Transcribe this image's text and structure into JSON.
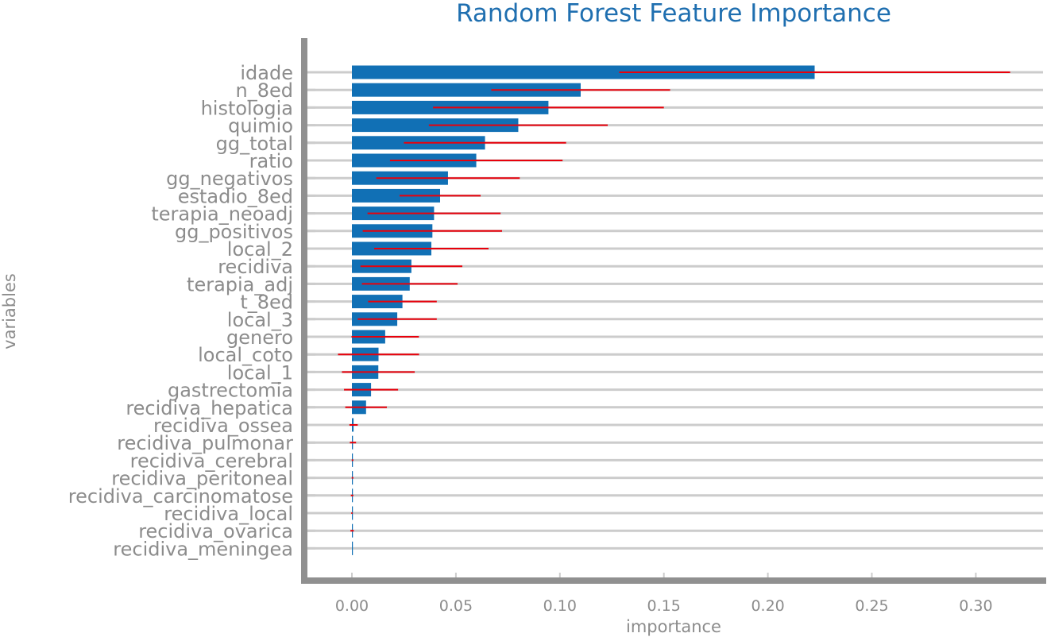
{
  "chart_data": {
    "type": "bar",
    "orientation": "horizontal",
    "title": "Random Forest Feature Importance",
    "xlabel": "importance",
    "ylabel": "variables",
    "xlim": [
      -0.024,
      0.333
    ],
    "xticks": [
      0.0,
      0.05,
      0.1,
      0.15,
      0.2,
      0.25,
      0.3
    ],
    "xtick_labels": [
      "0.00",
      "0.05",
      "0.10",
      "0.15",
      "0.20",
      "0.25",
      "0.30"
    ],
    "grid": "horizontal",
    "colors": {
      "bar": "#1170b5",
      "error": "#e8000b",
      "grid": "#cccccc",
      "axis": "#909090",
      "title": "#1f6fb0",
      "text": "#8c8c8c"
    },
    "categories": [
      "idade",
      "n_8ed",
      "histologia",
      "quimio",
      "gg_total",
      "ratio",
      "gg_negativos",
      "estadio_8ed",
      "terapia_neoadj",
      "gg_positivos",
      "local_2",
      "recidiva",
      "terapia_adj",
      "t_8ed",
      "local_3",
      "genero",
      "local_coto",
      "local_1",
      "gastrectomia",
      "recidiva_hepatica",
      "recidiva_ossea",
      "recidiva_pulmonar",
      "recidiva_cerebral",
      "recidiva_peritoneal",
      "recidiva_carcinomatose",
      "recidiva_local",
      "recidiva_ovarica",
      "recidiva_meningea"
    ],
    "values": [
      0.2225,
      0.11,
      0.0945,
      0.08,
      0.064,
      0.0598,
      0.0462,
      0.0424,
      0.0395,
      0.0387,
      0.0382,
      0.0286,
      0.0278,
      0.0243,
      0.0218,
      0.016,
      0.0128,
      0.0127,
      0.0092,
      0.0068,
      0.0008,
      0.0005,
      0.0003,
      0.0003,
      0.0001,
      0.0,
      0.0001,
      0.0
    ],
    "errors": [
      0.094,
      0.043,
      0.0555,
      0.043,
      0.039,
      0.0415,
      0.0345,
      0.0195,
      0.032,
      0.0335,
      0.0275,
      0.0245,
      0.023,
      0.0165,
      0.019,
      0.0162,
      0.0195,
      0.0175,
      0.013,
      0.01,
      0.002,
      0.0015,
      0.0004,
      0.0004,
      0.0006,
      0.0003,
      0.0008,
      0.0
    ]
  }
}
